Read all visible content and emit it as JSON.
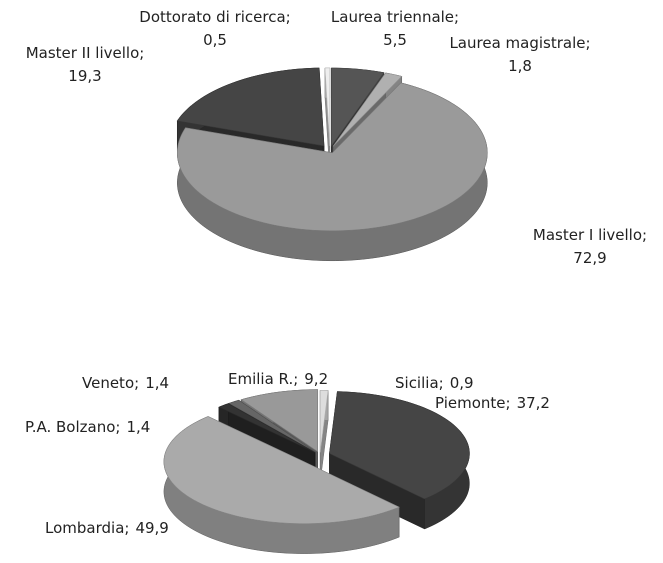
{
  "chart_data": [
    {
      "type": "pie",
      "categories": [
        "Laurea triennale;",
        "Laurea magistrale;",
        "Master I livello;",
        "Master II livello;",
        "Dottorato di ricerca;"
      ],
      "values": [
        5.5,
        1.8,
        72.9,
        19.3,
        0.5
      ],
      "value_labels": [
        "5,5",
        "1,8",
        "72,9",
        "19,3",
        "0,5"
      ],
      "colors": [
        "#555555",
        "#b0b0b0",
        "#9a9a9a",
        "#454545",
        "#eeeeee"
      ]
    },
    {
      "type": "pie",
      "categories": [
        "Sicilia;",
        "Piemonte;",
        "Lombardia;",
        "P.A. Bolzano;",
        "Veneto;",
        "Emilia R.;"
      ],
      "values": [
        0.9,
        37.2,
        49.9,
        1.4,
        1.4,
        9.2
      ],
      "value_labels": [
        "0,9",
        "37,2",
        "49,9",
        "1,4",
        "1,4",
        "9,2"
      ],
      "colors": [
        "#dddddd",
        "#454545",
        "#aaaaaa",
        "#333333",
        "#666666",
        "#999999"
      ]
    }
  ]
}
